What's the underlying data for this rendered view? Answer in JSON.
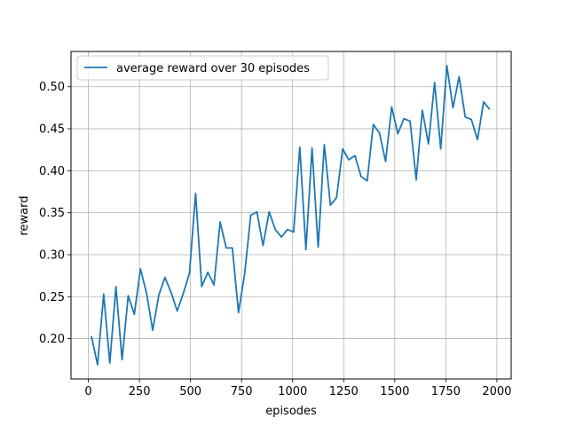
{
  "chart_data": {
    "type": "line",
    "xlabel": "episodes",
    "ylabel": "reward",
    "xlim": [
      -85,
      2070
    ],
    "ylim": [
      0.152,
      0.542
    ],
    "xticks": [
      0,
      250,
      500,
      750,
      1000,
      1250,
      1500,
      1750,
      2000
    ],
    "xtick_labels": [
      "0",
      "250",
      "500",
      "750",
      "1000",
      "1250",
      "1500",
      "1750",
      "2000"
    ],
    "yticks": [
      0.2,
      0.25,
      0.3,
      0.35,
      0.4,
      0.45,
      0.5
    ],
    "ytick_labels": [
      "0.20",
      "0.25",
      "0.30",
      "0.35",
      "0.40",
      "0.45",
      "0.50"
    ],
    "grid": true,
    "legend_position": "top-left",
    "series": [
      {
        "name": "average reward over 30 episodes",
        "color": "#1f77b4",
        "x": [
          15,
          45,
          75,
          105,
          135,
          165,
          195,
          225,
          255,
          285,
          315,
          345,
          375,
          405,
          435,
          465,
          495,
          525,
          555,
          585,
          615,
          645,
          675,
          705,
          735,
          765,
          795,
          825,
          855,
          885,
          915,
          945,
          975,
          1005,
          1035,
          1065,
          1095,
          1125,
          1155,
          1185,
          1215,
          1245,
          1275,
          1305,
          1335,
          1365,
          1395,
          1425,
          1455,
          1485,
          1515,
          1545,
          1575,
          1605,
          1635,
          1665,
          1695,
          1725,
          1755,
          1785,
          1815,
          1845,
          1875,
          1905,
          1935,
          1965
        ],
        "y": [
          0.203,
          0.169,
          0.253,
          0.171,
          0.262,
          0.175,
          0.251,
          0.229,
          0.283,
          0.254,
          0.21,
          0.252,
          0.273,
          0.255,
          0.233,
          0.254,
          0.278,
          0.373,
          0.262,
          0.279,
          0.264,
          0.339,
          0.308,
          0.308,
          0.231,
          0.277,
          0.347,
          0.351,
          0.311,
          0.351,
          0.33,
          0.321,
          0.33,
          0.327,
          0.428,
          0.306,
          0.427,
          0.309,
          0.431,
          0.359,
          0.368,
          0.426,
          0.413,
          0.418,
          0.393,
          0.388,
          0.455,
          0.445,
          0.411,
          0.476,
          0.444,
          0.462,
          0.459,
          0.389,
          0.472,
          0.432,
          0.505,
          0.426,
          0.525,
          0.475,
          0.512,
          0.464,
          0.461,
          0.437,
          0.482,
          0.473
        ]
      }
    ]
  }
}
